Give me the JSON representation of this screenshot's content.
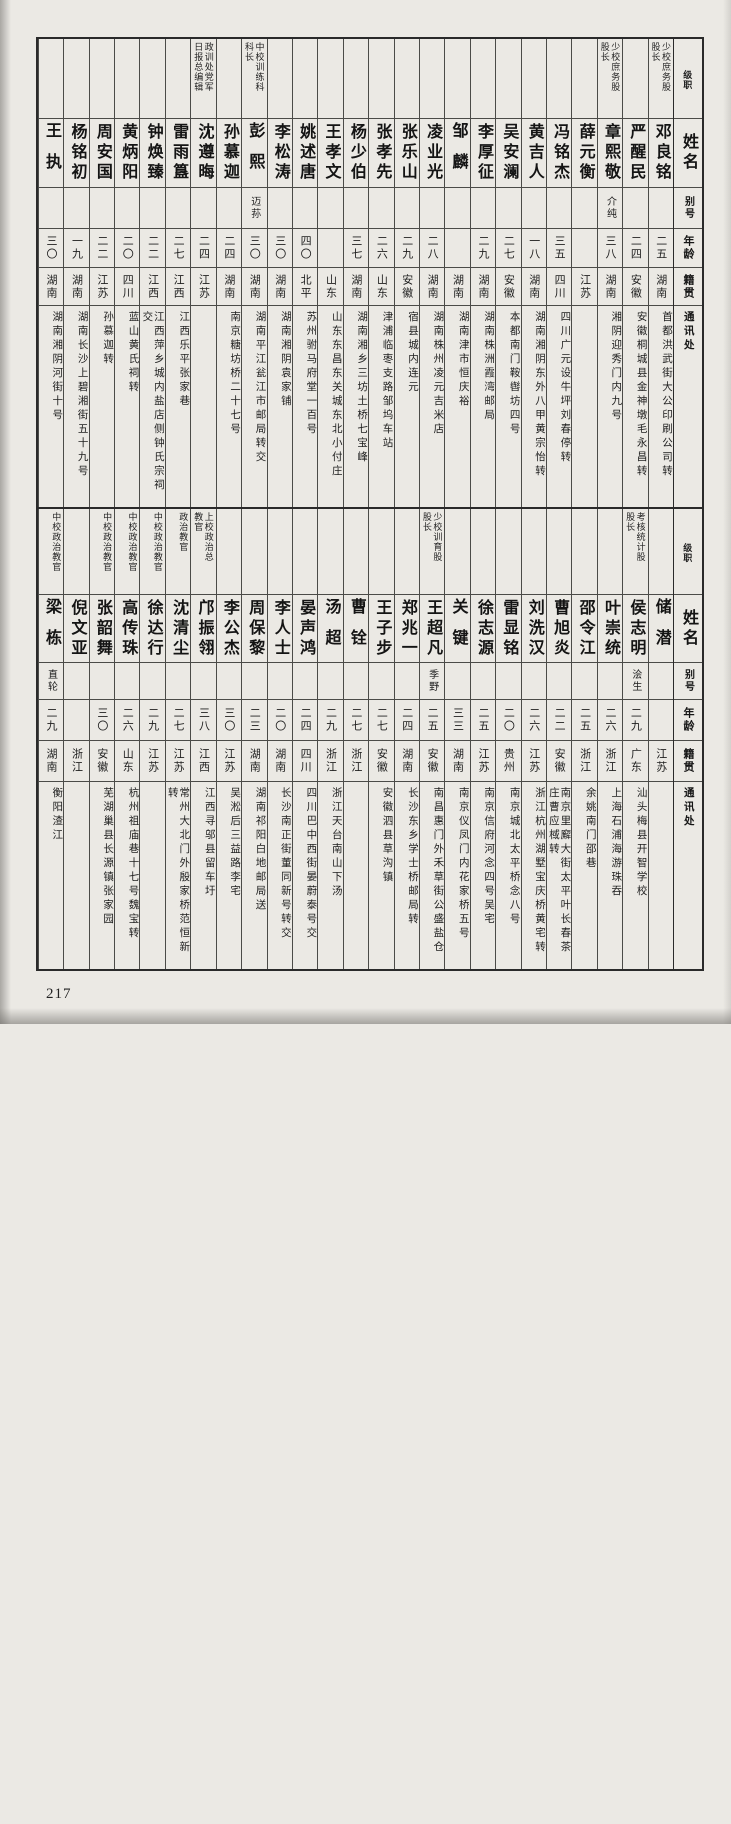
{
  "page": {
    "number": "217"
  },
  "colors": {
    "paper": "#ebe9e4",
    "ink": "#1e1e1e",
    "line": "#4b4b48"
  },
  "row_headers": [
    "级职",
    "姓名",
    "别号",
    "年龄",
    "籍贯",
    "通讯处"
  ],
  "tables": [
    {
      "entries": [
        {
          "rank": "少校庶务股\n股长",
          "name": "邓良铭",
          "alias": "",
          "age": "二五",
          "origin": "湖南",
          "address": "首都洪武街大公印刷公司转"
        },
        {
          "rank": "",
          "name": "严醒民",
          "alias": "",
          "age": "二四",
          "origin": "安徽",
          "address": "安徽桐城县金神墩毛永昌转"
        },
        {
          "rank": "少校庶务股\n股长",
          "name": "章熙敬",
          "alias": "介纯",
          "age": "三八",
          "origin": "湖南",
          "address": "湘阴迎秀门内九号"
        },
        {
          "rank": "",
          "name": "薛元衡",
          "alias": "",
          "age": "",
          "origin": "江苏",
          "address": ""
        },
        {
          "rank": "",
          "name": "冯铭杰",
          "alias": "",
          "age": "三五",
          "origin": "四川",
          "address": "四川广元设牛坪刘春停转"
        },
        {
          "rank": "",
          "name": "黄吉人",
          "alias": "",
          "age": "一八",
          "origin": "湖南",
          "address": "湖南湘阴东外八甲黄宗怡转"
        },
        {
          "rank": "",
          "name": "吴安澜",
          "alias": "",
          "age": "二七",
          "origin": "安徽",
          "address": "本都南门鞍辔坊四号"
        },
        {
          "rank": "",
          "name": "李厚征",
          "alias": "",
          "age": "二九",
          "origin": "湖南",
          "address": "湖南株洲霞湾邮局"
        },
        {
          "rank": "",
          "name": "邹麟",
          "alias": "",
          "age": "",
          "origin": "湖南",
          "address": "湖南津市恒庆裕"
        },
        {
          "rank": "",
          "name": "凌业光",
          "alias": "",
          "age": "二八",
          "origin": "湖南",
          "address": "湖南株州凌元吉米店"
        },
        {
          "rank": "",
          "name": "张乐山",
          "alias": "",
          "age": "二九",
          "origin": "安徽",
          "address": "宿县城内连元"
        },
        {
          "rank": "",
          "name": "张孝先",
          "alias": "",
          "age": "二六",
          "origin": "山东",
          "address": "津浦临枣支路邹坞车站"
        },
        {
          "rank": "",
          "name": "杨少伯",
          "alias": "",
          "age": "三七",
          "origin": "湖南",
          "address": "湖南湘乡三坊土桥七宝峰"
        },
        {
          "rank": "",
          "name": "王孝文",
          "alias": "",
          "age": "",
          "origin": "山东",
          "address": "山东东昌东关城东北小付庄"
        },
        {
          "rank": "",
          "name": "姚述唐",
          "alias": "",
          "age": "四〇",
          "origin": "北平",
          "address": "苏州驸马府堂一百号"
        },
        {
          "rank": "",
          "name": "李松涛",
          "alias": "",
          "age": "三〇",
          "origin": "湖南",
          "address": "湖南湘阴袁家铺"
        },
        {
          "rank": "中校训练科\n科长",
          "name": "彭熙",
          "alias": "迈荪",
          "age": "三〇",
          "origin": "湖南",
          "address": "湖南平江瓮江市邮局转交"
        },
        {
          "rank": "",
          "name": "孙慕迦",
          "alias": "",
          "age": "二四",
          "origin": "湖南",
          "address": "南京糖坊桥二十七号"
        },
        {
          "rank": "政训处党军\n日报总编辑",
          "name": "沈遵晦",
          "alias": "",
          "age": "二四",
          "origin": "江苏",
          "address": ""
        },
        {
          "rank": "",
          "name": "雷雨簋",
          "alias": "",
          "age": "二七",
          "origin": "江西",
          "address": "江西乐平张家巷"
        },
        {
          "rank": "",
          "name": "钟焕臻",
          "alias": "",
          "age": "二二",
          "origin": "江西",
          "address": "江西萍乡城内盐店侧钟氏宗祠交"
        },
        {
          "rank": "",
          "name": "黄炳阳",
          "alias": "",
          "age": "二〇",
          "origin": "四川",
          "address": "蓝山黄氏祠转"
        },
        {
          "rank": "",
          "name": "周安国",
          "alias": "",
          "age": "二二",
          "origin": "江苏",
          "address": "孙慕迦转"
        },
        {
          "rank": "",
          "name": "杨铭初",
          "alias": "",
          "age": "一九",
          "origin": "湖南",
          "address": "湖南长沙上碧湘街五十九号"
        },
        {
          "rank": "",
          "name": "王执",
          "alias": "",
          "age": "三〇",
          "origin": "湖南",
          "address": "湖南湘阴河街十号"
        }
      ]
    },
    {
      "entries": [
        {
          "rank": "",
          "name": "储潜",
          "alias": "",
          "age": "",
          "origin": "江苏",
          "address": ""
        },
        {
          "rank": "考核统计股\n股长",
          "name": "侯志明",
          "alias": "浍生",
          "age": "二九",
          "origin": "广东",
          "address": "汕头梅县开智学校"
        },
        {
          "rank": "",
          "name": "叶崇统",
          "alias": "",
          "age": "二六",
          "origin": "浙江",
          "address": "上海石浦海游珠吞"
        },
        {
          "rank": "",
          "name": "邵令江",
          "alias": "",
          "age": "二五",
          "origin": "浙江",
          "address": "余姚南门邵巷"
        },
        {
          "rank": "",
          "name": "曹旭炎",
          "alias": "",
          "age": "二二",
          "origin": "安徽",
          "address": "南京里廨大街太平叶长春茶庄曹应棫转"
        },
        {
          "rank": "",
          "name": "刘洗汉",
          "alias": "",
          "age": "二六",
          "origin": "江苏",
          "address": "浙江杭州湖墅宝庆桥黄宅转"
        },
        {
          "rank": "",
          "name": "雷显铭",
          "alias": "",
          "age": "二〇",
          "origin": "贵州",
          "address": "南京城北太平桥念八号"
        },
        {
          "rank": "",
          "name": "徐志源",
          "alias": "",
          "age": "二五",
          "origin": "江苏",
          "address": "南京信府河念四号吴宅"
        },
        {
          "rank": "",
          "name": "关键",
          "alias": "",
          "age": "三三",
          "origin": "湖南",
          "address": "南京仪凤门内花家桥五号"
        },
        {
          "rank": "少校训育股\n股长",
          "name": "王超凡",
          "alias": "季野",
          "age": "二五",
          "origin": "安徽",
          "address": "南昌惠门外禾草街公盛盐仓"
        },
        {
          "rank": "",
          "name": "郑兆一",
          "alias": "",
          "age": "二四",
          "origin": "湖南",
          "address": "长沙东乡学士桥邮局转"
        },
        {
          "rank": "",
          "name": "王子步",
          "alias": "",
          "age": "二七",
          "origin": "安徽",
          "address": "安徽泗县草沟镇"
        },
        {
          "rank": "",
          "name": "曹铨",
          "alias": "",
          "age": "二七",
          "origin": "浙江",
          "address": ""
        },
        {
          "rank": "",
          "name": "汤超",
          "alias": "",
          "age": "二九",
          "origin": "浙江",
          "address": "浙江天台南山下汤"
        },
        {
          "rank": "",
          "name": "晏声鸿",
          "alias": "",
          "age": "二四",
          "origin": "四川",
          "address": "四川巴中西街晏蔚泰号交"
        },
        {
          "rank": "",
          "name": "李人士",
          "alias": "",
          "age": "二〇",
          "origin": "湖南",
          "address": "长沙南正街董同新号转交"
        },
        {
          "rank": "",
          "name": "周保黎",
          "alias": "",
          "age": "二三",
          "origin": "湖南",
          "address": "湖南祁阳白地邮局送"
        },
        {
          "rank": "",
          "name": "李公杰",
          "alias": "",
          "age": "三〇",
          "origin": "江苏",
          "address": "吴淞后三益路李宅"
        },
        {
          "rank": "上校政治总\n教官",
          "name": "邝振翎",
          "alias": "",
          "age": "三八",
          "origin": "江西",
          "address": "江西寻邬县留车圩"
        },
        {
          "rank": "政治教官",
          "name": "沈清尘",
          "alias": "",
          "age": "二七",
          "origin": "江苏",
          "address": "常州大北门外殷家桥范恒新转"
        },
        {
          "rank": "中校政治教官",
          "name": "徐达行",
          "alias": "",
          "age": "二九",
          "origin": "江苏",
          "address": ""
        },
        {
          "rank": "中校政治教官",
          "name": "高传珠",
          "alias": "",
          "age": "二六",
          "origin": "山东",
          "address": "杭州祖庙巷十七号魏宝转"
        },
        {
          "rank": "中校政治教官",
          "name": "张韶舞",
          "alias": "",
          "age": "三〇",
          "origin": "安徽",
          "address": "芜湖巢县长源镇张家园"
        },
        {
          "rank": "",
          "name": "倪文亚",
          "alias": "",
          "age": "",
          "origin": "浙江",
          "address": ""
        },
        {
          "rank": "中校政治教官",
          "name": "梁栋",
          "alias": "直轮",
          "age": "二九",
          "origin": "湖南",
          "address": "衡阳渣江"
        }
      ]
    }
  ]
}
